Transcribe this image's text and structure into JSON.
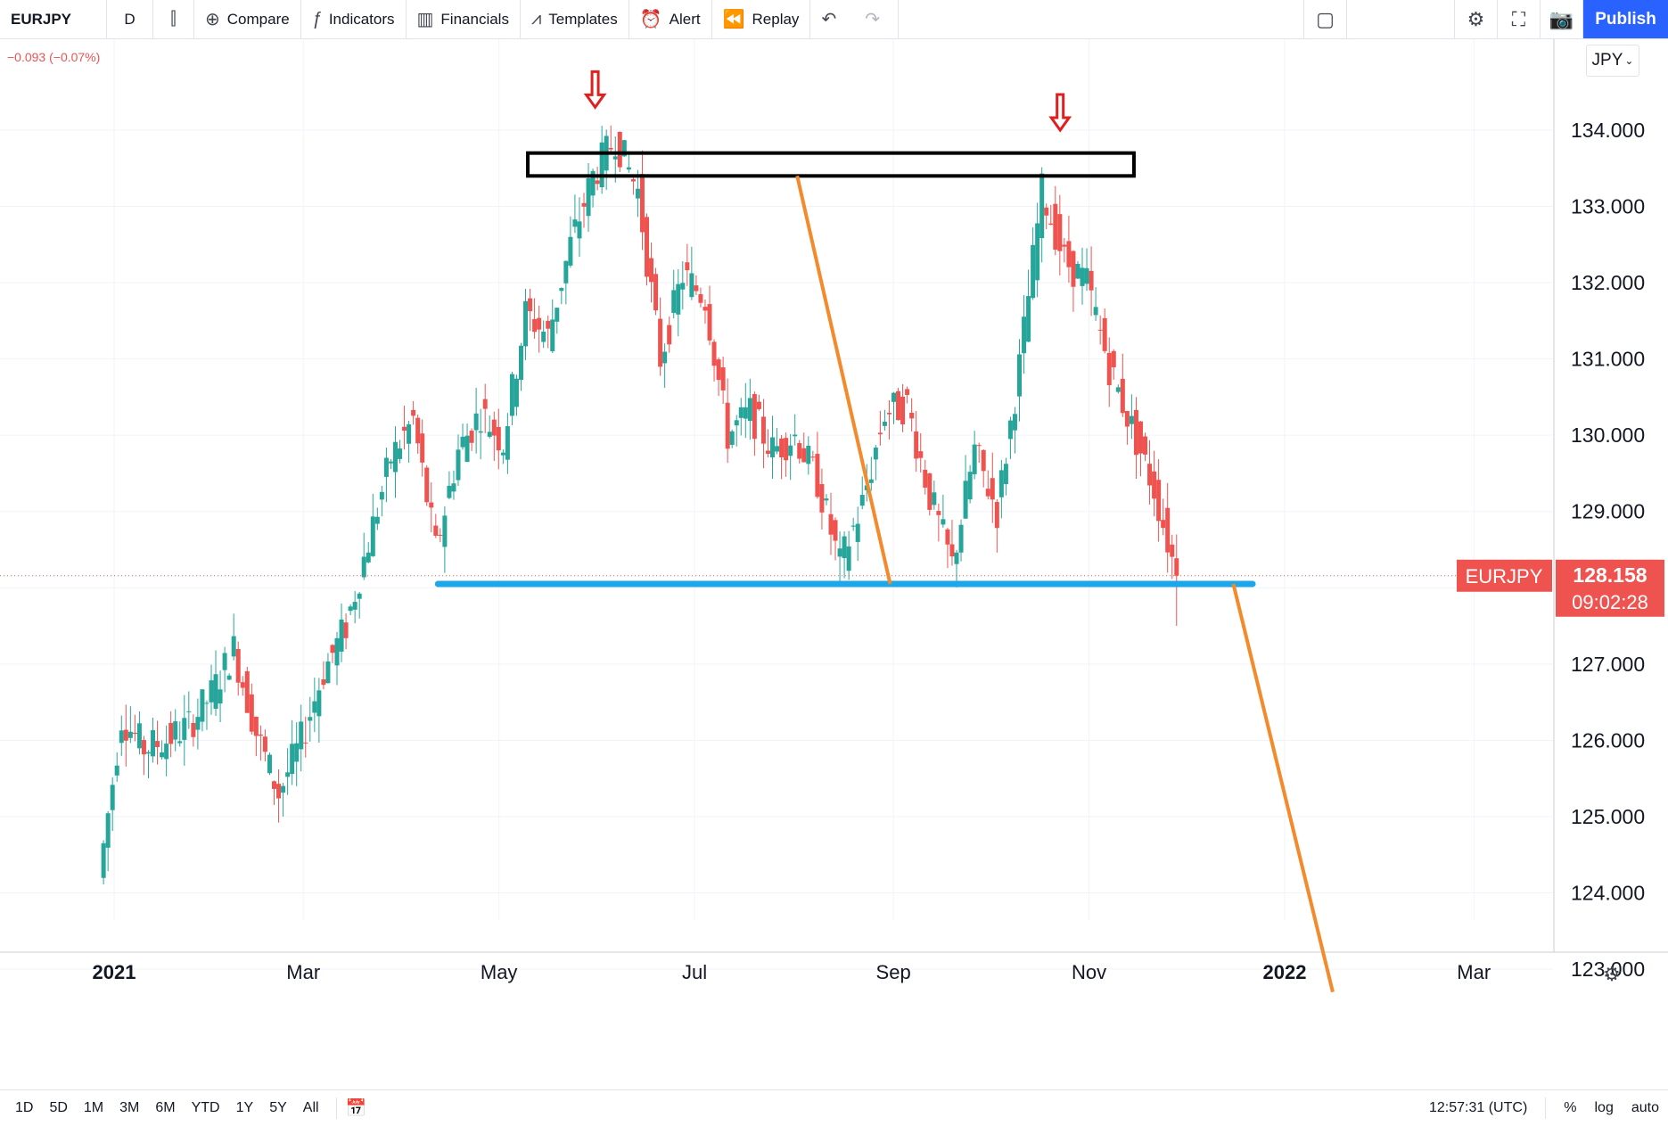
{
  "toolbar": {
    "symbol": "EURJPY",
    "interval": "D",
    "compare": "Compare",
    "indicators": "Indicators",
    "financials": "Financials",
    "templates": "Templates",
    "alert": "Alert",
    "replay": "Replay",
    "publish": "Publish"
  },
  "change_text": "−0.093 (−0.07%)",
  "currency_selector": "JPY",
  "price_label": {
    "symbol": "EURJPY",
    "price": "128.158",
    "countdown": "09:02:28"
  },
  "bottom": {
    "ranges": [
      "1D",
      "5D",
      "1M",
      "3M",
      "6M",
      "YTD",
      "1Y",
      "5Y",
      "All"
    ],
    "time": "12:57:31 (UTC)",
    "percent": "%",
    "log": "log",
    "auto": "auto"
  },
  "colors": {
    "up": "#26a69a",
    "down": "#ef5350",
    "support": "#1ea7e8",
    "projection": "#f38a2c",
    "arrow": "#e0201e",
    "price_tag": "#ef5350"
  },
  "chart_data": {
    "type": "candlestick",
    "symbol": "EURJPY",
    "interval": "D",
    "y_ticks": [
      "123.000",
      "124.000",
      "125.000",
      "126.000",
      "127.000",
      "128.000",
      "129.000",
      "130.000",
      "131.000",
      "132.000",
      "133.000",
      "134.000"
    ],
    "x_ticks": [
      "2021",
      "Mar",
      "May",
      "Jul",
      "Sep",
      "Nov",
      "2022",
      "Mar"
    ],
    "ylim": [
      122.1,
      135.5
    ],
    "series": [
      {
        "name": "EURJPY",
        "points": [
          {
            "date": "2020-12-28",
            "close": 124.2
          },
          {
            "date": "2021-01-04",
            "close": 126.3
          },
          {
            "date": "2021-01-11",
            "close": 125.9
          },
          {
            "date": "2021-01-18",
            "close": 126.0
          },
          {
            "date": "2021-01-25",
            "close": 126.2
          },
          {
            "date": "2021-02-01",
            "close": 126.6
          },
          {
            "date": "2021-02-08",
            "close": 127.2
          },
          {
            "date": "2021-02-15",
            "close": 126.1
          },
          {
            "date": "2021-02-22",
            "close": 125.3
          },
          {
            "date": "2021-03-01",
            "close": 126.0
          },
          {
            "date": "2021-03-08",
            "close": 126.9
          },
          {
            "date": "2021-03-15",
            "close": 127.5
          },
          {
            "date": "2021-03-22",
            "close": 128.6
          },
          {
            "date": "2021-03-29",
            "close": 129.7
          },
          {
            "date": "2021-04-05",
            "close": 130.2
          },
          {
            "date": "2021-04-12",
            "close": 128.5
          },
          {
            "date": "2021-04-19",
            "close": 129.8
          },
          {
            "date": "2021-04-26",
            "close": 130.3
          },
          {
            "date": "2021-05-03",
            "close": 129.9
          },
          {
            "date": "2021-05-10",
            "close": 131.6
          },
          {
            "date": "2021-05-17",
            "close": 131.3
          },
          {
            "date": "2021-05-24",
            "close": 132.5
          },
          {
            "date": "2021-05-31",
            "close": 133.4
          },
          {
            "date": "2021-06-07",
            "close": 133.9
          },
          {
            "date": "2021-06-14",
            "close": 133.2
          },
          {
            "date": "2021-06-21",
            "close": 131.0
          },
          {
            "date": "2021-06-28",
            "close": 132.1
          },
          {
            "date": "2021-07-05",
            "close": 131.8
          },
          {
            "date": "2021-07-12",
            "close": 130.0
          },
          {
            "date": "2021-07-19",
            "close": 130.3
          },
          {
            "date": "2021-07-26",
            "close": 129.8
          },
          {
            "date": "2021-08-02",
            "close": 130.0
          },
          {
            "date": "2021-08-09",
            "close": 129.4
          },
          {
            "date": "2021-08-16",
            "close": 128.3
          },
          {
            "date": "2021-08-23",
            "close": 129.1
          },
          {
            "date": "2021-08-30",
            "close": 130.3
          },
          {
            "date": "2021-09-06",
            "close": 130.4
          },
          {
            "date": "2021-09-13",
            "close": 129.2
          },
          {
            "date": "2021-09-20",
            "close": 128.3
          },
          {
            "date": "2021-09-27",
            "close": 129.8
          },
          {
            "date": "2021-10-04",
            "close": 129.0
          },
          {
            "date": "2021-10-11",
            "close": 130.9
          },
          {
            "date": "2021-10-18",
            "close": 133.2
          },
          {
            "date": "2021-10-25",
            "close": 132.3
          },
          {
            "date": "2021-11-01",
            "close": 132.0
          },
          {
            "date": "2021-11-08",
            "close": 130.9
          },
          {
            "date": "2021-11-15",
            "close": 130.1
          },
          {
            "date": "2021-11-22",
            "close": 129.3
          },
          {
            "date": "2021-11-29",
            "close": 128.158
          }
        ]
      }
    ],
    "annotations": [
      {
        "type": "resistance_zone",
        "from_date": "2021-05-10",
        "to_date": "2021-11-15",
        "low": 133.4,
        "high": 133.7
      },
      {
        "type": "support_line",
        "from_date": "2021-04-12",
        "to_date": "2021-12-22",
        "price": 128.05
      },
      {
        "type": "projection_line",
        "from": {
          "date": "2021-08-02",
          "price": 133.4
        },
        "to": {
          "date": "2021-08-31",
          "price": 128.05
        }
      },
      {
        "type": "projection_line",
        "from": {
          "date": "2021-12-16",
          "price": 128.05
        },
        "to": {
          "date": "2022-01-16",
          "price": 122.7
        }
      },
      {
        "type": "arrow_down",
        "date": "2021-05-31",
        "price": 134.3
      },
      {
        "type": "arrow_down",
        "date": "2021-10-23",
        "price": 134.0
      }
    ]
  }
}
